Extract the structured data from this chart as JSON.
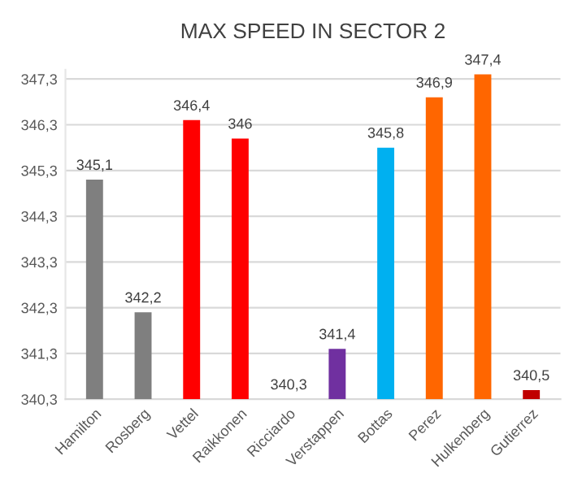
{
  "chart_data": {
    "type": "bar",
    "title": "MAX SPEED IN SECTOR 2",
    "categories": [
      "Hamilton",
      "Rosberg",
      "Vettel",
      "Raikkonen",
      "Ricciardo",
      "Verstappen",
      "Bottas",
      "Perez",
      "Hulkenberg",
      "Gutierrez"
    ],
    "values": [
      345.1,
      342.2,
      346.4,
      346,
      340.3,
      341.4,
      345.8,
      346.9,
      347.4,
      340.5
    ],
    "value_labels": [
      "345,1",
      "342,2",
      "346,4",
      "346",
      "340,3",
      "341,4",
      "345,8",
      "346,9",
      "347,4",
      "340,5"
    ],
    "colors": [
      "#7f7f7f",
      "#7f7f7f",
      "#ff0000",
      "#ff0000",
      "#ff0000",
      "#7030a0",
      "#00b0f0",
      "#ff6600",
      "#ff6600",
      "#c00000"
    ],
    "ylim": [
      340.3,
      347.5
    ],
    "yticks": [
      {
        "value": 340.3,
        "label": "340,3"
      },
      {
        "value": 341.3,
        "label": "341,3"
      },
      {
        "value": 342.3,
        "label": "342,3"
      },
      {
        "value": 343.3,
        "label": "343,3"
      },
      {
        "value": 344.3,
        "label": "344,3"
      },
      {
        "value": 345.3,
        "label": "345,3"
      },
      {
        "value": 346.3,
        "label": "346,3"
      },
      {
        "value": 347.3,
        "label": "347,3"
      }
    ],
    "grid": "y"
  }
}
